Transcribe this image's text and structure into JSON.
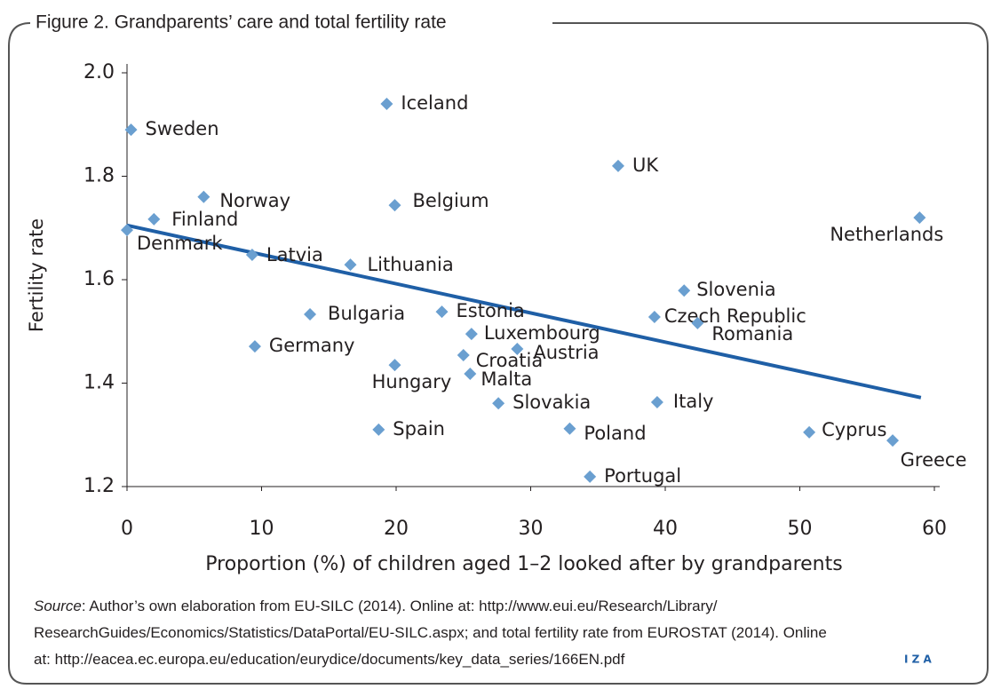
{
  "chart_data": {
    "type": "scatter",
    "title": "Figure 2. Grandparents’ care and total fertility rate",
    "xlabel": "Proportion (%) of children aged 1–2 looked after by grandparents",
    "ylabel": "Fertility rate",
    "color": "#6a9fd0",
    "trendline": {
      "color": "#1f5fa6",
      "x": [
        0,
        59
      ],
      "y": [
        1.705,
        1.372
      ]
    },
    "labels": [
      "Sweden",
      "Iceland",
      "UK",
      "Norway",
      "Belgium",
      "Finland",
      "Netherlands",
      "Denmark",
      "Latvia",
      "Lithuania",
      "Slovenia",
      "Bulgaria",
      "Estonia",
      "Czech Republic",
      "Romania",
      "Luxembourg",
      "Germany",
      "Austria",
      "Croatia",
      "Hungary",
      "Malta",
      "Slovakia",
      "Italy",
      "Spain",
      "Poland",
      "Cyprus",
      "Greece",
      "Portugal"
    ],
    "x": [
      0.3,
      19.3,
      36.5,
      5.7,
      19.9,
      2.0,
      58.9,
      0,
      9.3,
      16.6,
      41.4,
      13.6,
      23.4,
      39.2,
      42.4,
      25.6,
      9.5,
      29.0,
      25.0,
      19.9,
      25.5,
      27.6,
      39.4,
      18.7,
      32.9,
      50.7,
      56.9,
      34.4
    ],
    "y": [
      1.89,
      1.94,
      1.82,
      1.76,
      1.744,
      1.717,
      1.72,
      1.696,
      1.648,
      1.629,
      1.579,
      1.533,
      1.538,
      1.528,
      1.516,
      1.495,
      1.471,
      1.466,
      1.454,
      1.435,
      1.418,
      1.361,
      1.363,
      1.31,
      1.312,
      1.305,
      1.289,
      1.219
    ],
    "xlim": [
      0,
      60
    ],
    "ylim": [
      1.2,
      2.0
    ],
    "xticks": [
      0,
      10,
      20,
      30,
      40,
      50,
      60
    ],
    "yticks": [
      {
        "value": 1.2,
        "label": "1.2"
      },
      {
        "value": 1.4,
        "label": "1.4"
      },
      {
        "value": 1.6,
        "label": "1.6"
      },
      {
        "value": 1.8,
        "label": "1.8"
      },
      {
        "value": 2.0,
        "label": "2.0"
      }
    ],
    "grid": false,
    "source_label": "Source",
    "source_lines": [
      ": Author’s own elaboration from EU-SILC (2014). Online at: http://www.eui.eu/Research/Library/",
      "ResearchGuides/Economics/Statistics/DataPortal/EU-SILC.aspx; and total fertility rate from EUROSTAT (2014). Online",
      "at: http://eacea.ec.europa.eu/education/eurydice/documents/key_data_series/166EN.pdf"
    ],
    "logo": "I Z A"
  }
}
